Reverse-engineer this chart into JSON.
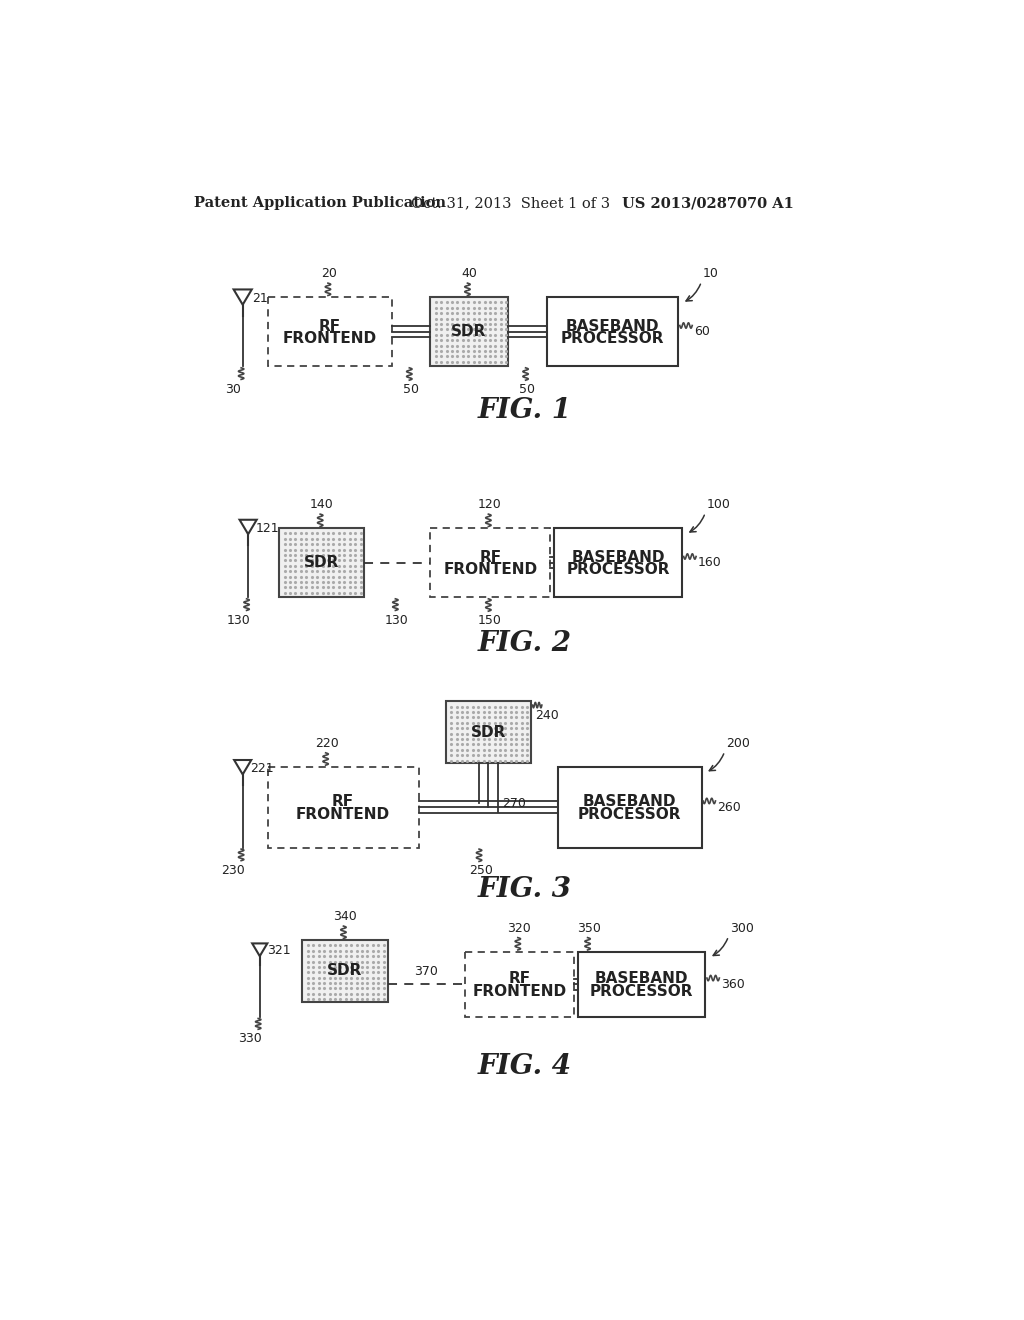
{
  "bg_color": "#ffffff",
  "header_text1": "Patent Application Publication",
  "header_text2": "Oct. 31, 2013  Sheet 1 of 3",
  "header_text3": "US 2013/0287070 A1",
  "fig1_title": "FIG. 1",
  "fig2_title": "FIG. 2",
  "fig3_title": "FIG. 3",
  "fig4_title": "FIG. 4",
  "line_color": "#333333",
  "text_color": "#222222",
  "sdr_fill": "#d8d8d8",
  "dot_color": "#999999"
}
